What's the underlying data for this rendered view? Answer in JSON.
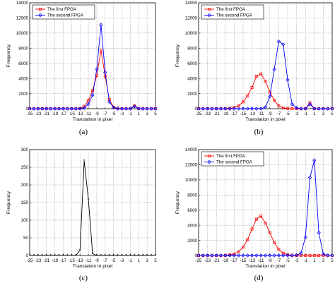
{
  "chart_data": [
    {
      "type": "line",
      "caption": "(a)",
      "xlabel": "Translation in pixel",
      "ylabel": "Frequency",
      "xlim": [
        -25,
        5
      ],
      "ylim": [
        0,
        14000
      ],
      "xticks": [
        "-25",
        "-23",
        "-21",
        "-19",
        "-17",
        "-15",
        "-13",
        "-11",
        "-9",
        "-7",
        "-5",
        "-3",
        "-1",
        "1",
        "3",
        "5"
      ],
      "yticks": [
        "0",
        "2000",
        "4000",
        "6000",
        "8000",
        "10000",
        "12000",
        "14000"
      ],
      "grid": true,
      "legend_position": "top-left",
      "x": [
        -25,
        -24,
        -23,
        -22,
        -21,
        -20,
        -19,
        -18,
        -17,
        -16,
        -15,
        -14,
        -13,
        -12,
        -11,
        -10,
        -9,
        -8,
        -7,
        -6,
        -5,
        -4,
        -3,
        -2,
        -1,
        0,
        1,
        2,
        3,
        4,
        5
      ],
      "series": [
        {
          "name": "The first FPGA",
          "color": "#ff0000",
          "marker": "square",
          "values": [
            0,
            0,
            0,
            0,
            0,
            0,
            0,
            0,
            0,
            0,
            0,
            0,
            50,
            300,
            1100,
            2400,
            4400,
            7700,
            4300,
            1200,
            200,
            50,
            0,
            0,
            0,
            400,
            0,
            0,
            0,
            0,
            0
          ]
        },
        {
          "name": "The second FPGA",
          "color": "#0000ff",
          "marker": "diamond",
          "values": [
            0,
            0,
            0,
            0,
            0,
            0,
            0,
            0,
            0,
            0,
            0,
            0,
            0,
            100,
            600,
            1800,
            5200,
            11100,
            4800,
            900,
            150,
            0,
            0,
            0,
            0,
            300,
            0,
            0,
            0,
            0,
            0
          ]
        }
      ]
    },
    {
      "type": "line",
      "caption": "(b)",
      "xlabel": "Translation in pixel",
      "ylabel": "Frequency",
      "xlim": [
        -25,
        5
      ],
      "ylim": [
        0,
        14000
      ],
      "xticks": [
        "-25",
        "-23",
        "-21",
        "-19",
        "-17",
        "-15",
        "-13",
        "-11",
        "-9",
        "-7",
        "-5",
        "-3",
        "-1",
        "1",
        "3",
        "5"
      ],
      "yticks": [
        "0",
        "2000",
        "4000",
        "6000",
        "8000",
        "10000",
        "12000",
        "14000"
      ],
      "grid": true,
      "legend_position": "top-left",
      "x": [
        -25,
        -24,
        -23,
        -22,
        -21,
        -20,
        -19,
        -18,
        -17,
        -16,
        -15,
        -14,
        -13,
        -12,
        -11,
        -10,
        -9,
        -8,
        -7,
        -6,
        -5,
        -4,
        -3,
        -2,
        -1,
        0,
        1,
        2,
        3,
        4,
        5
      ],
      "series": [
        {
          "name": "The first FPGA",
          "color": "#ff0000",
          "marker": "square",
          "values": [
            0,
            0,
            0,
            0,
            0,
            0,
            20,
            60,
            150,
            400,
            900,
            1700,
            2800,
            4300,
            4600,
            3600,
            2200,
            1100,
            400,
            100,
            30,
            0,
            0,
            0,
            0,
            800,
            0,
            0,
            0,
            0,
            0
          ]
        },
        {
          "name": "The second FPGA",
          "color": "#0000ff",
          "marker": "diamond",
          "values": [
            0,
            0,
            0,
            0,
            0,
            0,
            0,
            0,
            0,
            0,
            0,
            0,
            0,
            0,
            0,
            200,
            1600,
            5200,
            8900,
            8500,
            3800,
            600,
            100,
            0,
            0,
            600,
            0,
            0,
            0,
            0,
            0
          ]
        }
      ]
    },
    {
      "type": "line",
      "caption": "(c)",
      "xlabel": "Translation in pixel",
      "ylabel": "Frequency",
      "xlim": [
        -25,
        5
      ],
      "ylim": [
        0,
        300
      ],
      "xticks": [
        "-25",
        "-23",
        "-21",
        "-19",
        "-17",
        "-15",
        "-13",
        "-11",
        "-9",
        "-7",
        "-5",
        "-3",
        "-1",
        "1",
        "3",
        "5"
      ],
      "yticks": [
        "0",
        "50",
        "100",
        "150",
        "200",
        "250",
        "300"
      ],
      "grid": true,
      "legend_position": "none",
      "x": [
        -25,
        -24,
        -23,
        -22,
        -21,
        -20,
        -19,
        -18,
        -17,
        -16,
        -15,
        -14,
        -13,
        -12,
        -11,
        -10,
        -9,
        -8,
        -7,
        -6,
        -5,
        -4,
        -3,
        -2,
        -1,
        0,
        1,
        2,
        3,
        4,
        5
      ],
      "series": [
        {
          "color": "#000000",
          "marker": "star",
          "values": [
            0,
            0,
            0,
            0,
            0,
            0,
            0,
            0,
            0,
            0,
            0,
            0,
            15,
            268,
            158,
            5,
            0,
            0,
            0,
            0,
            0,
            0,
            0,
            0,
            0,
            0,
            0,
            0,
            0,
            0,
            0
          ]
        }
      ]
    },
    {
      "type": "line",
      "caption": "(d)",
      "xlabel": "Translation in pixel",
      "ylabel": "Frequency",
      "xlim": [
        -25,
        5
      ],
      "ylim": [
        0,
        14000
      ],
      "xticks": [
        "-25",
        "-23",
        "-21",
        "-19",
        "-17",
        "-15",
        "-13",
        "-11",
        "-9",
        "-7",
        "-5",
        "-3",
        "-1",
        "1",
        "3",
        "5"
      ],
      "yticks": [
        "0",
        "2000",
        "4000",
        "6000",
        "8000",
        "10000",
        "12000",
        "14000"
      ],
      "grid": true,
      "legend_position": "top-left",
      "x": [
        -25,
        -24,
        -23,
        -22,
        -21,
        -20,
        -19,
        -18,
        -17,
        -16,
        -15,
        -14,
        -13,
        -12,
        -11,
        -10,
        -9,
        -8,
        -7,
        -6,
        -5,
        -4,
        -3,
        -2,
        -1,
        0,
        1,
        2,
        3,
        4,
        5
      ],
      "series": [
        {
          "name": "The first FPGA",
          "color": "#ff0000",
          "marker": "square",
          "values": [
            0,
            0,
            0,
            0,
            0,
            0,
            20,
            80,
            200,
            500,
            1100,
            2100,
            3500,
            4800,
            5200,
            4300,
            3000,
            1700,
            800,
            300,
            100,
            30,
            0,
            0,
            0,
            0,
            0,
            0,
            0,
            0,
            0
          ]
        },
        {
          "name": "The second FPGA",
          "color": "#0000ff",
          "marker": "diamond",
          "values": [
            0,
            0,
            0,
            0,
            0,
            0,
            0,
            0,
            0,
            0,
            0,
            0,
            0,
            0,
            0,
            0,
            0,
            0,
            0,
            0,
            0,
            0,
            50,
            300,
            2400,
            10300,
            12600,
            3000,
            200,
            0,
            0
          ]
        }
      ]
    }
  ]
}
